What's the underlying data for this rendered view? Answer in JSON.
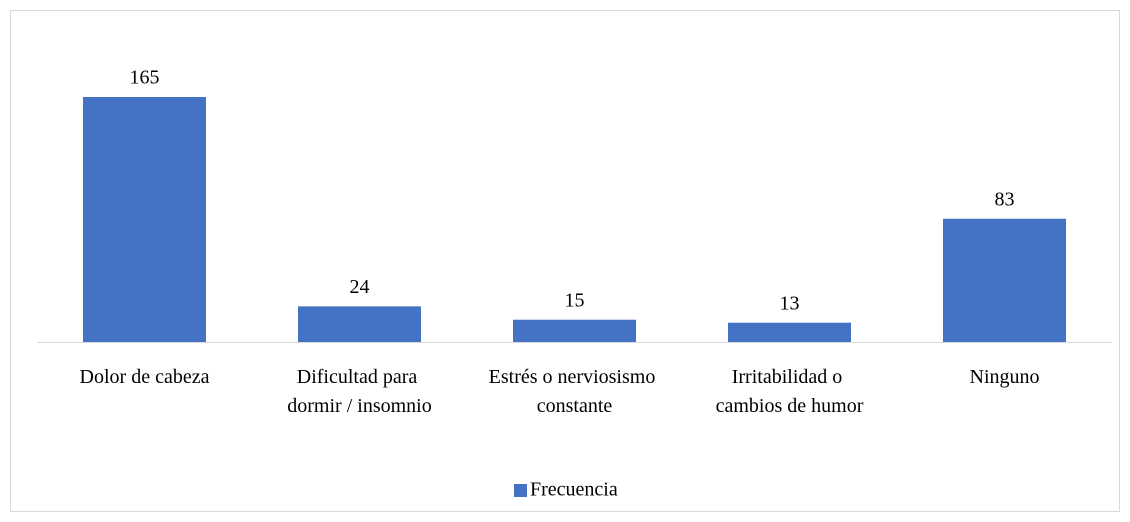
{
  "chart_data": {
    "type": "bar",
    "categories": [
      "Dolor de cabeza",
      "Dificultad para dormir / insomnio",
      "Estrés o nerviosismo constante",
      "Irritabilidad o cambios de humor",
      "Ninguno"
    ],
    "series": [
      {
        "name": "Frecuencia",
        "color": "#4472c4",
        "values": [
          165,
          24,
          15,
          13,
          83
        ]
      }
    ],
    "legend": "bottom"
  }
}
